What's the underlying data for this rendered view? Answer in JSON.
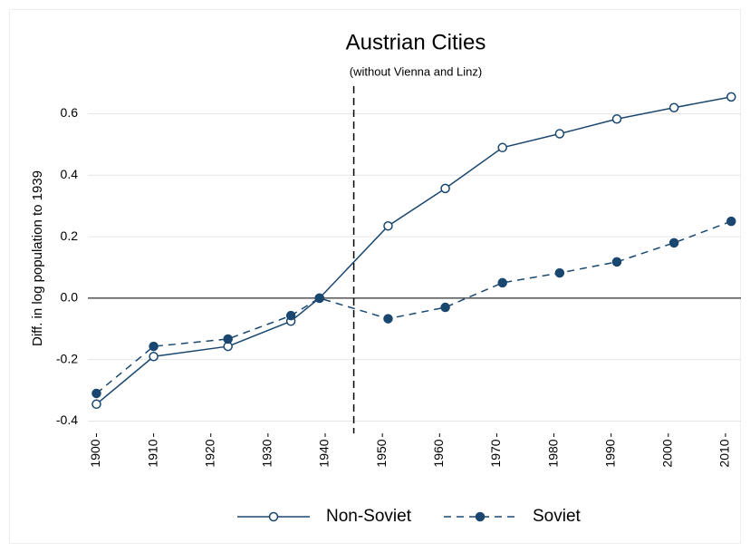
{
  "chart_data": {
    "type": "line",
    "title": "Austrian Cities",
    "subtitle": "(without Vienna and Linz)",
    "y_label": "Diff. in log population to 1939",
    "x": [
      1900,
      1910,
      1923,
      1934,
      1939,
      1951,
      1961,
      1971,
      1981,
      1991,
      2001,
      2011
    ],
    "series": [
      {
        "name": "Non-Soviet",
        "color": "#1a476f",
        "marker": "hollow",
        "dash": "solid",
        "values": [
          -0.345,
          -0.19,
          -0.157,
          -0.075,
          0,
          0.235,
          0.357,
          0.49,
          0.535,
          0.583,
          0.62,
          0.655
        ]
      },
      {
        "name": "Soviet",
        "color": "#1a476f",
        "marker": "filled",
        "dash": "dashed",
        "values": [
          -0.31,
          -0.157,
          -0.133,
          -0.057,
          0,
          -0.067,
          -0.03,
          0.05,
          0.082,
          0.118,
          0.18,
          0.25
        ]
      }
    ],
    "xlim": [
      1898.5,
      2012.7
    ],
    "xticks": [
      1900,
      1910,
      1920,
      1930,
      1940,
      1950,
      1960,
      1970,
      1980,
      1990,
      2000,
      2010
    ],
    "ylim": [
      -0.44,
      0.69
    ],
    "yticks": [
      -0.4,
      -0.2,
      {
        "value": 0,
        "label": "0.0"
      },
      0.2,
      0.4,
      0.6
    ],
    "zero_line": true,
    "vline": 1945,
    "grid": true,
    "legend": "bottom"
  }
}
